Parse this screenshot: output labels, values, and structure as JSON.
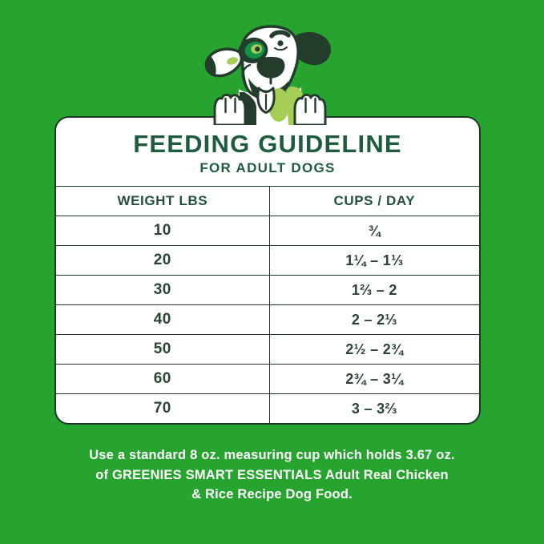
{
  "title": {
    "heading": "FEEDING GUIDELINE",
    "subheading": "FOR ADULT DOGS"
  },
  "table": {
    "columns": [
      "WEIGHT LBS",
      "CUPS / DAY"
    ],
    "rows": [
      {
        "weight": "10",
        "cups": "¾"
      },
      {
        "weight": "20",
        "cups": "1¼ – 1⅓"
      },
      {
        "weight": "30",
        "cups": "1⅔ – 2"
      },
      {
        "weight": "40",
        "cups": "2 – 2⅓"
      },
      {
        "weight": "50",
        "cups": "2½ – 2¾"
      },
      {
        "weight": "60",
        "cups": "2¾ – 3¼"
      },
      {
        "weight": "70",
        "cups": "3 – 3⅔"
      }
    ]
  },
  "footer": {
    "lines": [
      "Use a standard 8 oz. measuring cup which holds 3.67 oz.",
      "of GREENIES SMART ESSENTIALS Adult Real Chicken",
      "& Rice Recipe Dog Food."
    ]
  },
  "illustration": {
    "icon": "dog-mascot-icon"
  },
  "colors": {
    "background": "#27a32f",
    "card_background": "#ffffff",
    "table_line": "#1d3826",
    "title_text": "#1e5c3d",
    "table_text": "#2a4433",
    "footer_text": "#ffffff",
    "dog_dark_green": "#243c2c",
    "dog_light_green": "#a6cd55",
    "dog_mid_green": "#129245"
  }
}
